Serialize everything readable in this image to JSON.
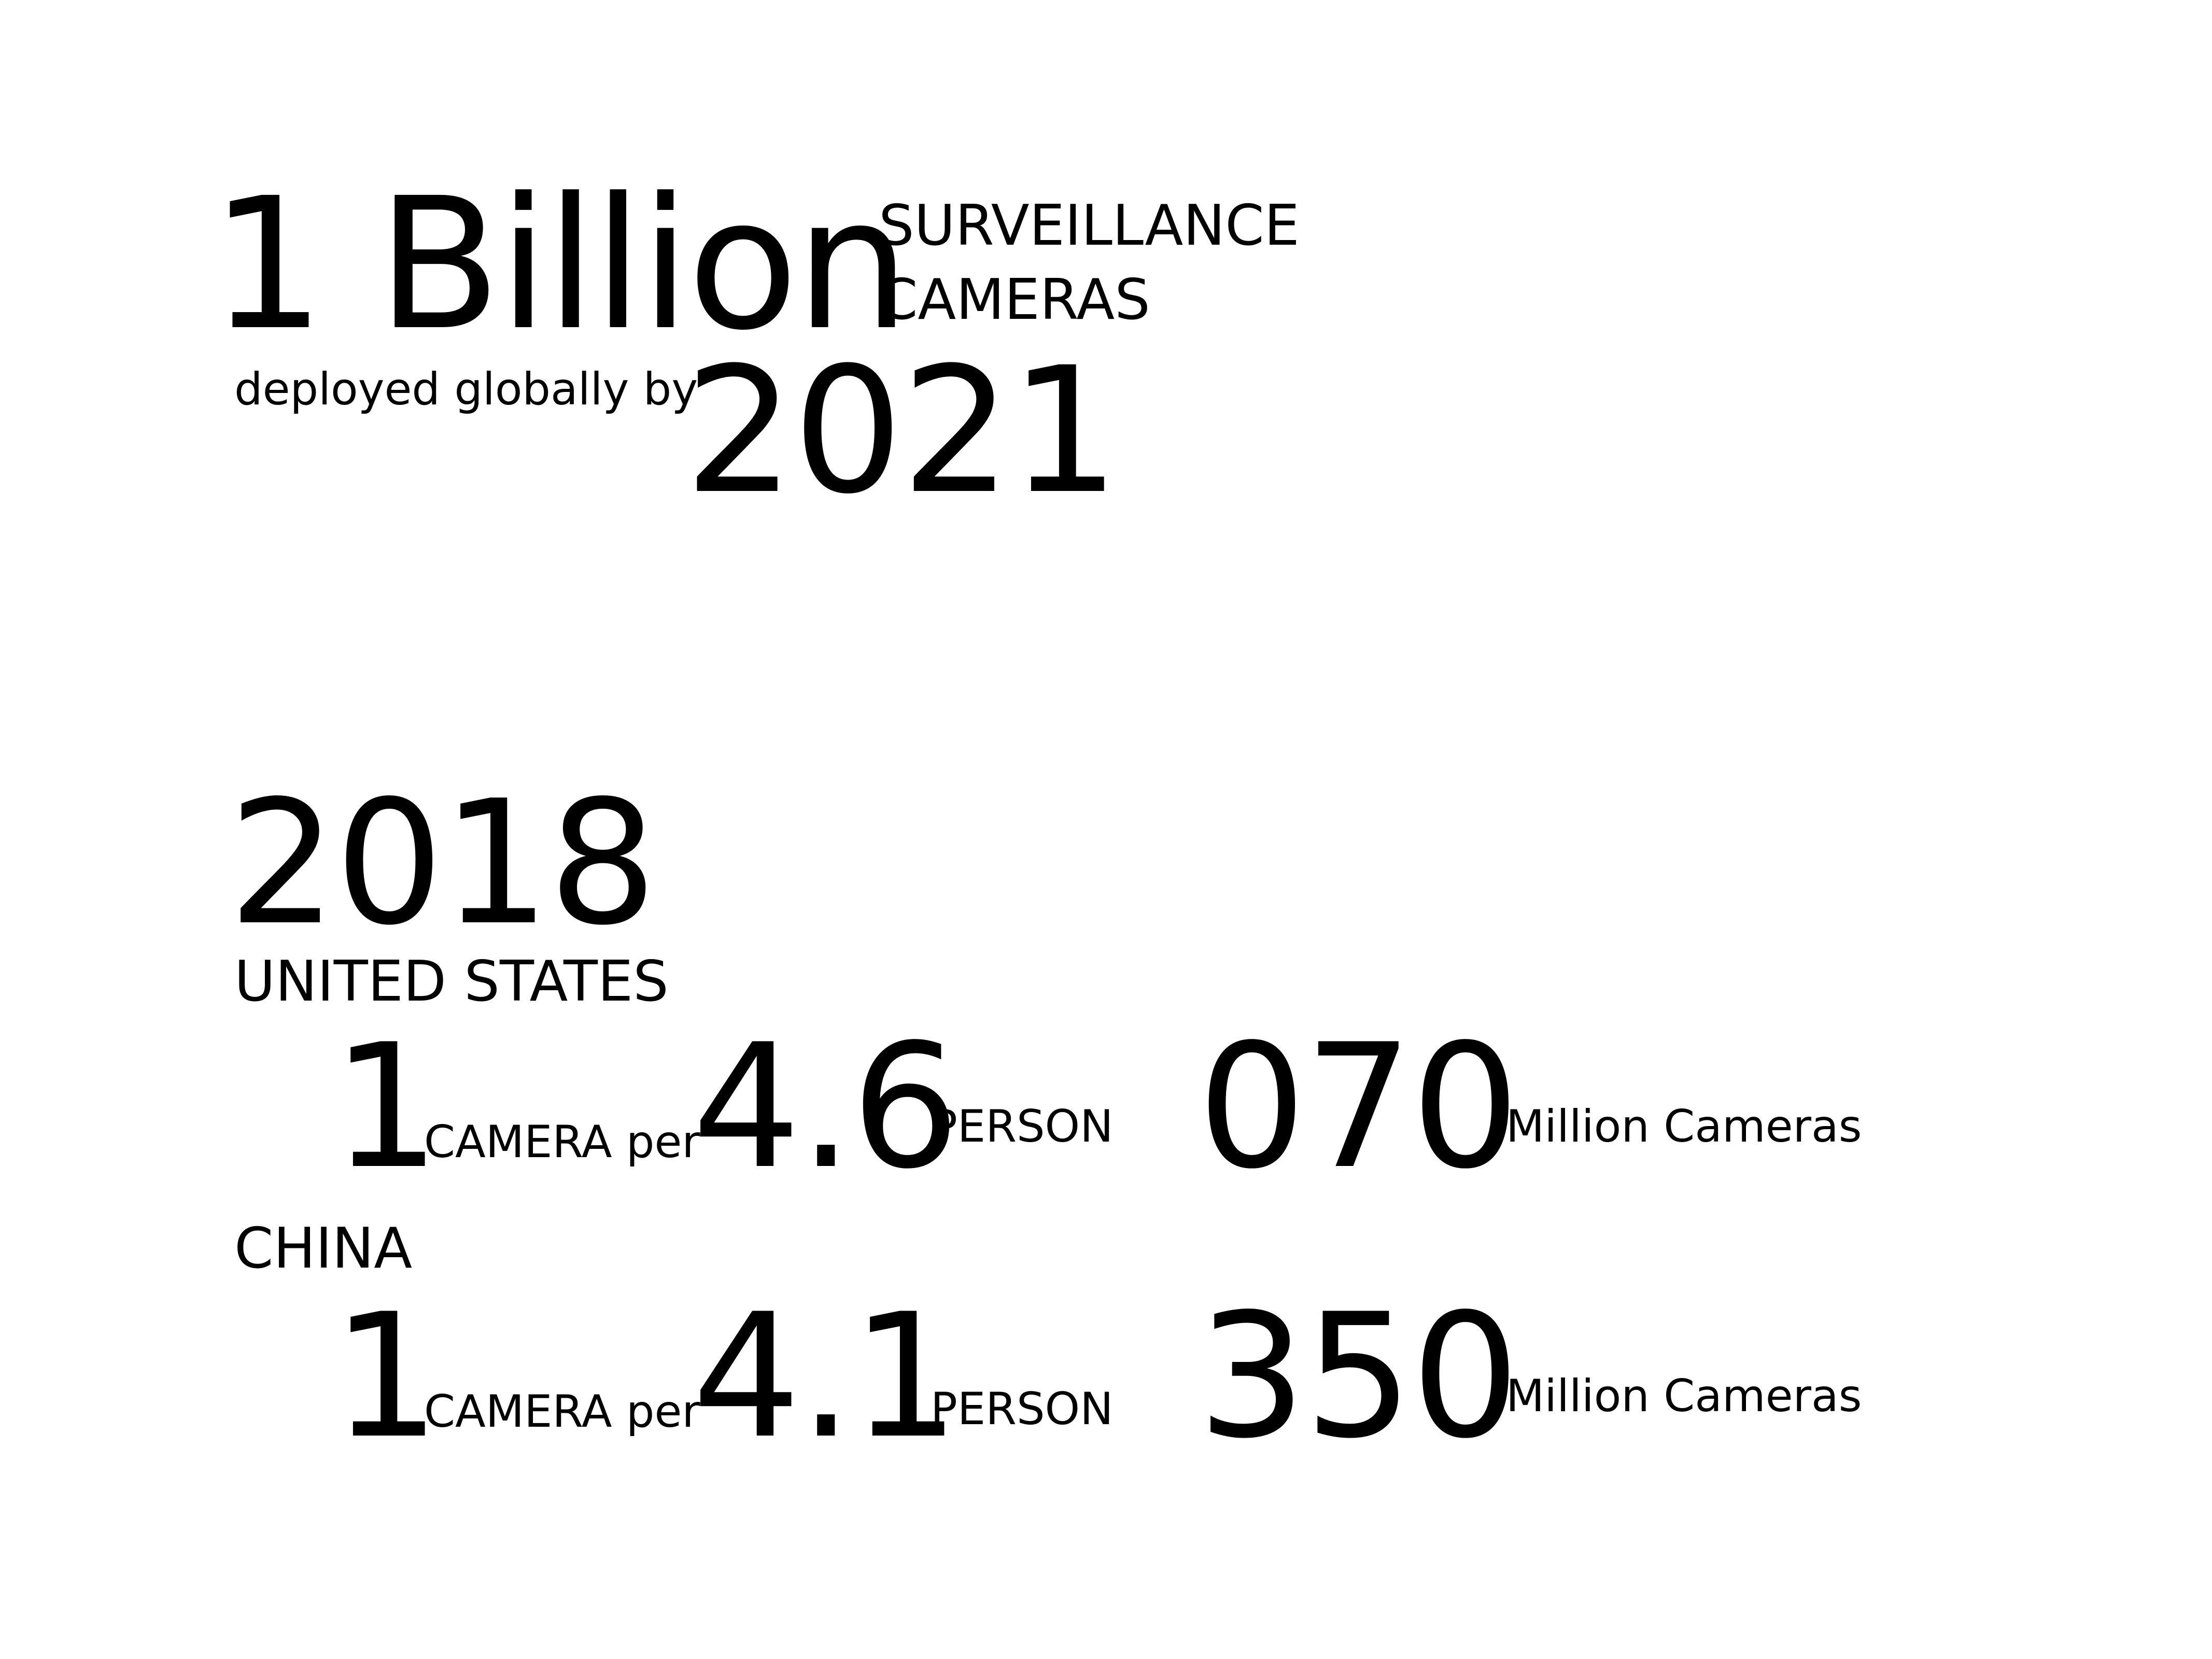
{
  "headline": {
    "value": "1 Billion",
    "subject_line1": "SURVEILLANCE",
    "subject_line2": "CAMERAS",
    "qualifier": "deployed globally by",
    "year": "2021"
  },
  "stats_2018": {
    "year": "2018",
    "countries": [
      {
        "name": "UNITED STATES",
        "camera_count": "1",
        "camera_label": "CAMERA per",
        "people_per_camera": "4.6",
        "person_label": "PERSON",
        "total": "070",
        "total_unit": "Million Cameras"
      },
      {
        "name": "CHINA",
        "camera_count": "1",
        "camera_label": "CAMERA per",
        "people_per_camera": "4.1",
        "person_label": "PERSON",
        "total": "350",
        "total_unit": "Million Cameras"
      }
    ]
  }
}
